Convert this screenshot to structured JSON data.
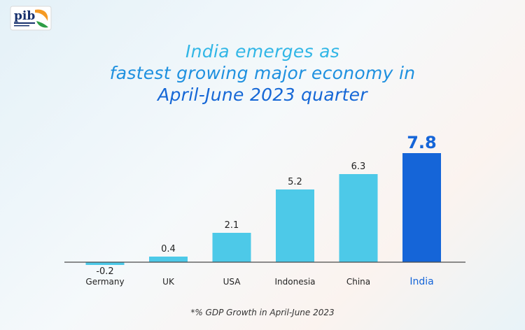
{
  "header": {
    "title_lines": [
      "India emerges as",
      "fastest growing major economy in",
      "April-June 2023 quarter"
    ]
  },
  "footnote": "*% GDP Growth in April-June 2023",
  "colors": {
    "bar": "#4dc9e8",
    "highlight_bar": "#1565d8",
    "baseline": "#4a4a4a",
    "label": "#222222",
    "highlight_label": "#1565d8"
  },
  "chart_data": {
    "type": "bar",
    "title": "India emerges as fastest growing major economy in April-June 2023 quarter",
    "xlabel": "",
    "ylabel": "",
    "categories": [
      "Germany",
      "UK",
      "USA",
      "Indonesia",
      "China",
      "India"
    ],
    "values": [
      -0.2,
      0.4,
      2.1,
      5.2,
      6.3,
      7.8
    ],
    "value_labels": [
      "-0.2",
      "0.4",
      "2.1",
      "5.2",
      "6.3",
      "7.8"
    ],
    "highlight": "India",
    "ylim": [
      -0.5,
      8
    ],
    "grid": false,
    "legend": "none"
  }
}
